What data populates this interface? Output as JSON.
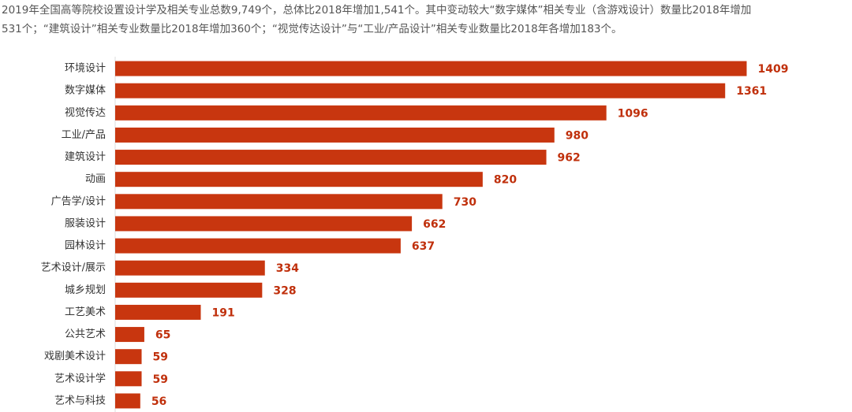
{
  "chart_data": {
    "type": "bar",
    "orientation": "horizontal",
    "description": [
      "2019年全国高等院校设置设计学及相关专业总数9,749个，总体比2018年增加1,541个。其中变动较大“数字媒体”相关专业（含游戏设计）数量比2018年增加",
      "531个；“建筑设计”相关专业数量比2018年增加360个；“视觉传达设计”与“工业/产品设计”相关专业数量比2018年各增加183个。"
    ],
    "categories": [
      "环境设计",
      "数字媒体",
      "视觉传达",
      "工业/产品",
      "建筑设计",
      "动画",
      "广告学/设计",
      "服装设计",
      "园林设计",
      "艺术设计/展示",
      "城乡规划",
      "工艺美术",
      "公共艺术",
      "戏剧美术设计",
      "艺术设计学",
      "艺术与科技"
    ],
    "values": [
      1409,
      1361,
      1096,
      980,
      962,
      820,
      730,
      662,
      637,
      334,
      328,
      191,
      65,
      59,
      59,
      56
    ],
    "color": "#c8360f",
    "label_color": "#c0300c",
    "xlim": [
      0,
      1600
    ]
  }
}
